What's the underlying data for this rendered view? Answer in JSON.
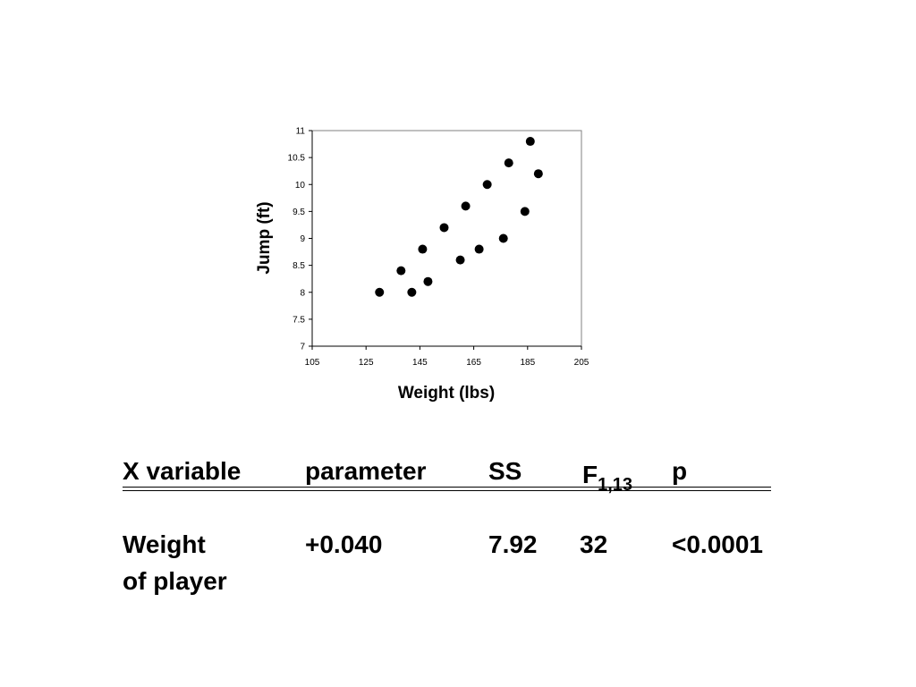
{
  "chart_data": {
    "type": "scatter",
    "title": "",
    "xlabel": "Weight (lbs)",
    "ylabel": "Jump (ft)",
    "xlim": [
      105,
      205
    ],
    "ylim": [
      7,
      11
    ],
    "xticks": [
      105,
      125,
      145,
      165,
      185,
      205
    ],
    "yticks": [
      7,
      7.5,
      8,
      8.5,
      9,
      9.5,
      10,
      10.5,
      11
    ],
    "xtick_labels": [
      "105",
      "125",
      "145",
      "165",
      "185",
      "205"
    ],
    "ytick_labels": [
      "7",
      "7.5",
      "8",
      "8.5",
      "9",
      "9.5",
      "10",
      "10.5",
      "11"
    ],
    "grid": false,
    "series": [
      {
        "marker": "filled-circle",
        "color": "#000000",
        "points": [
          {
            "x": 130,
            "y": 8.0
          },
          {
            "x": 138,
            "y": 8.4
          },
          {
            "x": 142,
            "y": 8.0
          },
          {
            "x": 146,
            "y": 8.8
          },
          {
            "x": 148,
            "y": 8.2
          },
          {
            "x": 154,
            "y": 9.2
          },
          {
            "x": 160,
            "y": 8.6
          },
          {
            "x": 162,
            "y": 9.6
          },
          {
            "x": 167,
            "y": 8.8
          },
          {
            "x": 170,
            "y": 10.0
          },
          {
            "x": 176,
            "y": 9.0
          },
          {
            "x": 178,
            "y": 10.4
          },
          {
            "x": 184,
            "y": 9.5
          },
          {
            "x": 186,
            "y": 10.8
          },
          {
            "x": 189,
            "y": 10.2
          }
        ]
      }
    ]
  },
  "table": {
    "headers": {
      "x_variable": "X variable",
      "parameter": "parameter",
      "ss": "SS",
      "f": "F",
      "f_sub": "1,13",
      "p": "p"
    },
    "row": {
      "x_variable_line1": "Weight",
      "x_variable_line2": "of player",
      "parameter": "+0.040",
      "ss": "7.92",
      "f": "32",
      "p": "<0.0001"
    }
  }
}
